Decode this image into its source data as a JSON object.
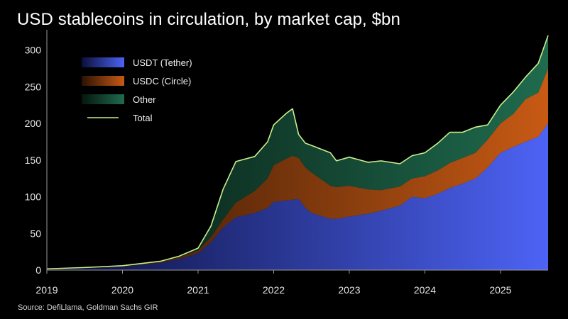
{
  "title": "USD stablecoins in circulation, by market cap, $bn",
  "source": "Source: DefiLlama, Goldman Sachs GIR",
  "chart_data": {
    "type": "area",
    "title": "USD stablecoins in circulation, by market cap, $bn",
    "xlabel": "",
    "ylabel": "",
    "stacked": true,
    "grid": false,
    "legend_placement": "top-left",
    "xlim": [
      2019.0,
      2025.63
    ],
    "ylim": [
      0,
      320
    ],
    "x_ticks": [
      2019,
      2020,
      2021,
      2022,
      2023,
      2024,
      2025
    ],
    "y_ticks": [
      0,
      50,
      100,
      150,
      200,
      250,
      300
    ],
    "x": [
      2019.0,
      2019.5,
      2020.0,
      2020.5,
      2020.75,
      2021.0,
      2021.17,
      2021.33,
      2021.5,
      2021.75,
      2021.92,
      2022.0,
      2022.17,
      2022.25,
      2022.33,
      2022.42,
      2022.5,
      2022.75,
      2022.83,
      2023.0,
      2023.25,
      2023.42,
      2023.67,
      2023.83,
      2024.0,
      2024.17,
      2024.33,
      2024.5,
      2024.67,
      2024.83,
      2025.0,
      2025.17,
      2025.33,
      2025.5,
      2025.63
    ],
    "series": [
      {
        "name": "USDT (Tether)",
        "color": "#4d63f5",
        "values": [
          1.0,
          2.5,
          4.6,
          10.0,
          15.0,
          23.0,
          38.0,
          58.0,
          72.0,
          78.0,
          85.0,
          93.0,
          95.0,
          96.0,
          97.0,
          85.0,
          78.0,
          70.0,
          70.0,
          73.0,
          77.0,
          81.0,
          88.0,
          100.0,
          98.0,
          104.0,
          112.0,
          118.0,
          125.0,
          140.0,
          160.0,
          168.0,
          175.0,
          182.0,
          200.0
        ]
      },
      {
        "name": "USDC (Circle)",
        "color": "#c85a14",
        "values": [
          0.5,
          0.7,
          1.0,
          1.5,
          2.5,
          4.0,
          7.0,
          11.0,
          20.0,
          30.0,
          40.0,
          50.0,
          57.0,
          60.0,
          56.0,
          55.0,
          55.0,
          45.0,
          43.0,
          42.0,
          33.0,
          28.0,
          26.0,
          25.0,
          30.0,
          32.0,
          34.0,
          35.0,
          35.0,
          38.0,
          40.0,
          45.0,
          58.0,
          60.0,
          75.0
        ]
      },
      {
        "name": "Other",
        "color": "#1f6b4e",
        "values": [
          0.2,
          0.3,
          0.4,
          0.5,
          1.5,
          3.0,
          15.0,
          41.0,
          56.0,
          47.0,
          50.0,
          55.0,
          62.0,
          64.0,
          32.0,
          33.0,
          37.0,
          45.0,
          36.0,
          39.0,
          37.0,
          40.0,
          31.0,
          31.0,
          32.0,
          37.0,
          42.0,
          35.0,
          35.0,
          20.0,
          25.0,
          30.0,
          30.0,
          40.0,
          45.0
        ]
      },
      {
        "name": "Total",
        "color": "#c8f08c",
        "values": [
          1.7,
          3.5,
          6.0,
          12.0,
          19.0,
          30.0,
          60.0,
          110.0,
          148.0,
          155.0,
          175.0,
          198.0,
          214.0,
          220.0,
          185.0,
          173.0,
          170.0,
          160.0,
          149.0,
          154.0,
          147.0,
          149.0,
          145.0,
          156.0,
          160.0,
          173.0,
          188.0,
          188.0,
          195.0,
          198.0,
          225.0,
          243.0,
          263.0,
          282.0,
          320.0
        ]
      }
    ]
  }
}
